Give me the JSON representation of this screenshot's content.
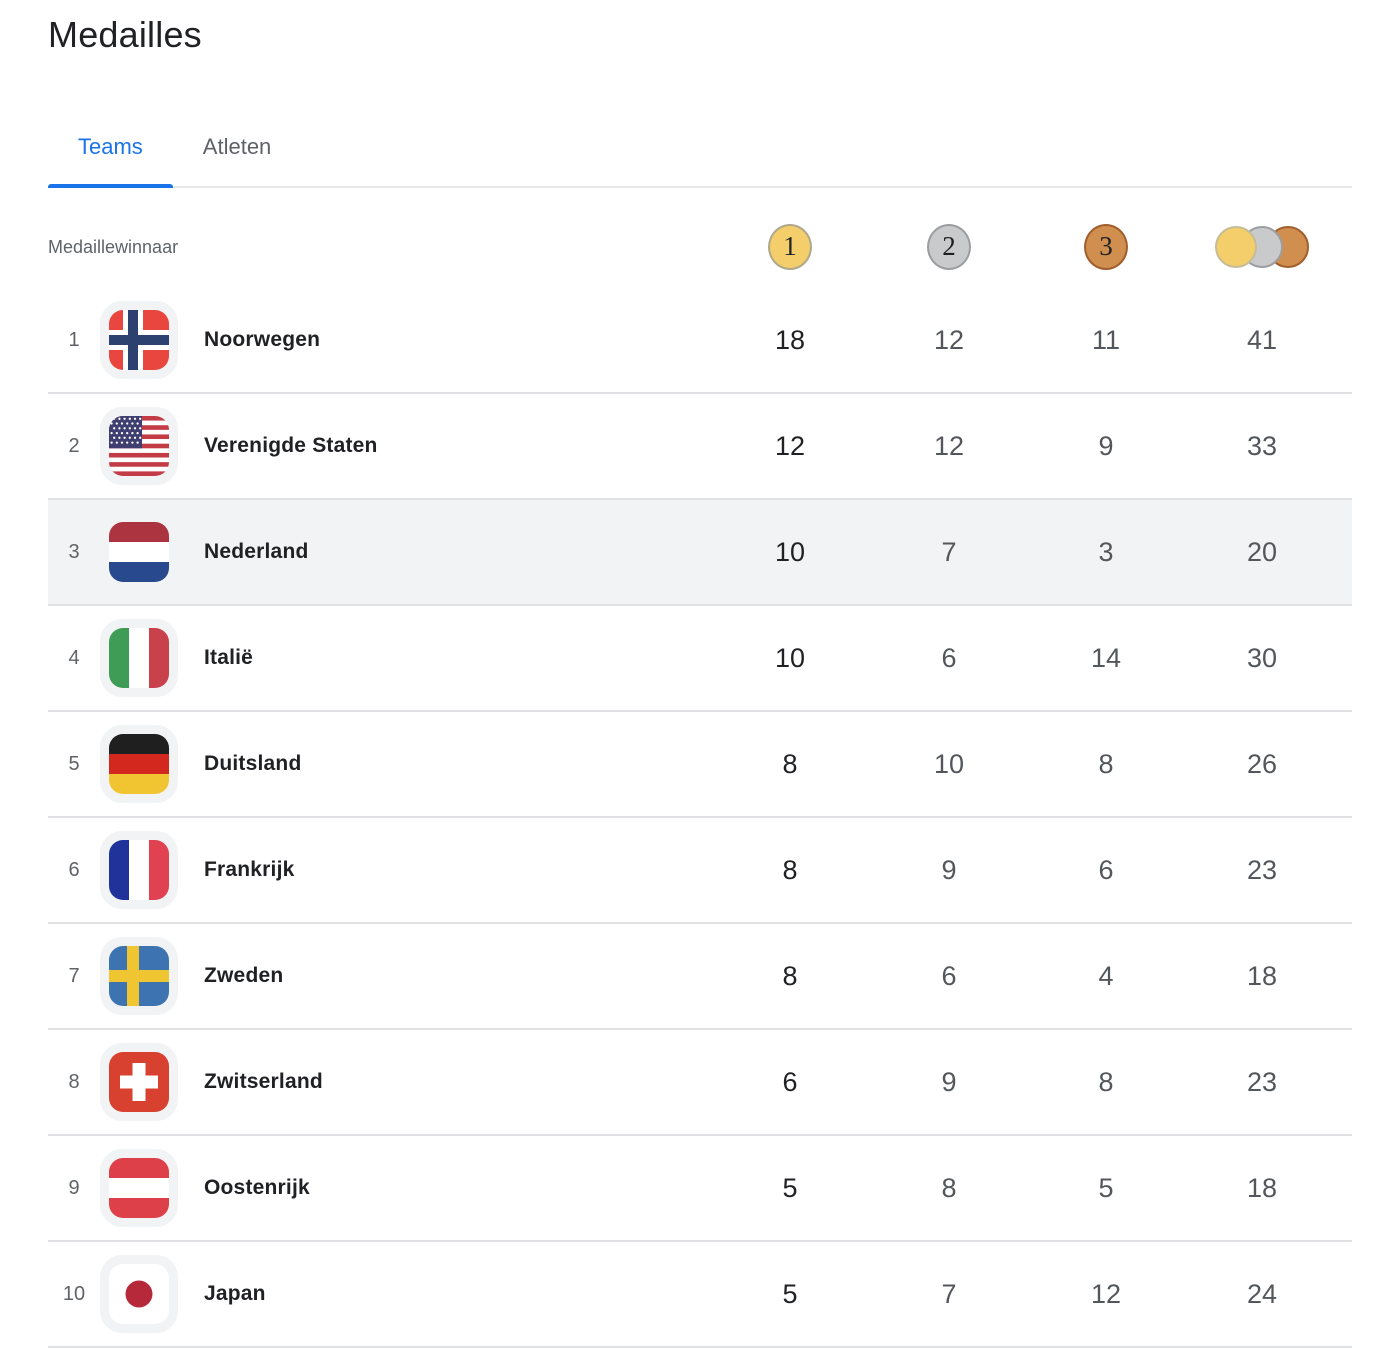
{
  "page": {
    "title": "Medailles"
  },
  "tabs": [
    {
      "label": "Teams",
      "active": true
    },
    {
      "label": "Atleten",
      "active": false
    }
  ],
  "table": {
    "header": {
      "label": "Medaillewinnaar",
      "gold_label": "1",
      "silver_label": "2",
      "bronze_label": "3"
    },
    "rows": [
      {
        "rank": "1",
        "country": "Noorwegen",
        "flag": "norway",
        "gold": "18",
        "silver": "12",
        "bronze": "11",
        "total": "41",
        "highlighted": false
      },
      {
        "rank": "2",
        "country": "Verenigde Staten",
        "flag": "united-states",
        "gold": "12",
        "silver": "12",
        "bronze": "9",
        "total": "33",
        "highlighted": false
      },
      {
        "rank": "3",
        "country": "Nederland",
        "flag": "netherlands",
        "gold": "10",
        "silver": "7",
        "bronze": "3",
        "total": "20",
        "highlighted": true
      },
      {
        "rank": "4",
        "country": "Italië",
        "flag": "italy",
        "gold": "10",
        "silver": "6",
        "bronze": "14",
        "total": "30",
        "highlighted": false
      },
      {
        "rank": "5",
        "country": "Duitsland",
        "flag": "germany",
        "gold": "8",
        "silver": "10",
        "bronze": "8",
        "total": "26",
        "highlighted": false
      },
      {
        "rank": "6",
        "country": "Frankrijk",
        "flag": "france",
        "gold": "8",
        "silver": "9",
        "bronze": "6",
        "total": "23",
        "highlighted": false
      },
      {
        "rank": "7",
        "country": "Zweden",
        "flag": "sweden",
        "gold": "8",
        "silver": "6",
        "bronze": "4",
        "total": "18",
        "highlighted": false
      },
      {
        "rank": "8",
        "country": "Zwitserland",
        "flag": "switzerland",
        "gold": "6",
        "silver": "9",
        "bronze": "8",
        "total": "23",
        "highlighted": false
      },
      {
        "rank": "9",
        "country": "Oostenrijk",
        "flag": "austria",
        "gold": "5",
        "silver": "8",
        "bronze": "5",
        "total": "18",
        "highlighted": false
      },
      {
        "rank": "10",
        "country": "Japan",
        "flag": "japan",
        "gold": "5",
        "silver": "7",
        "bronze": "12",
        "total": "24",
        "highlighted": false
      }
    ]
  },
  "colors": {
    "accent_blue": "#1a73e8",
    "gold": "#F3CE6B",
    "gold_border": "#AFA88B",
    "silver": "#C9CACC",
    "silver_border": "#9B9DA0",
    "bronze": "#D18F4F",
    "bronze_border": "#9F5E2C",
    "row_highlight": "#f1f3f4"
  }
}
